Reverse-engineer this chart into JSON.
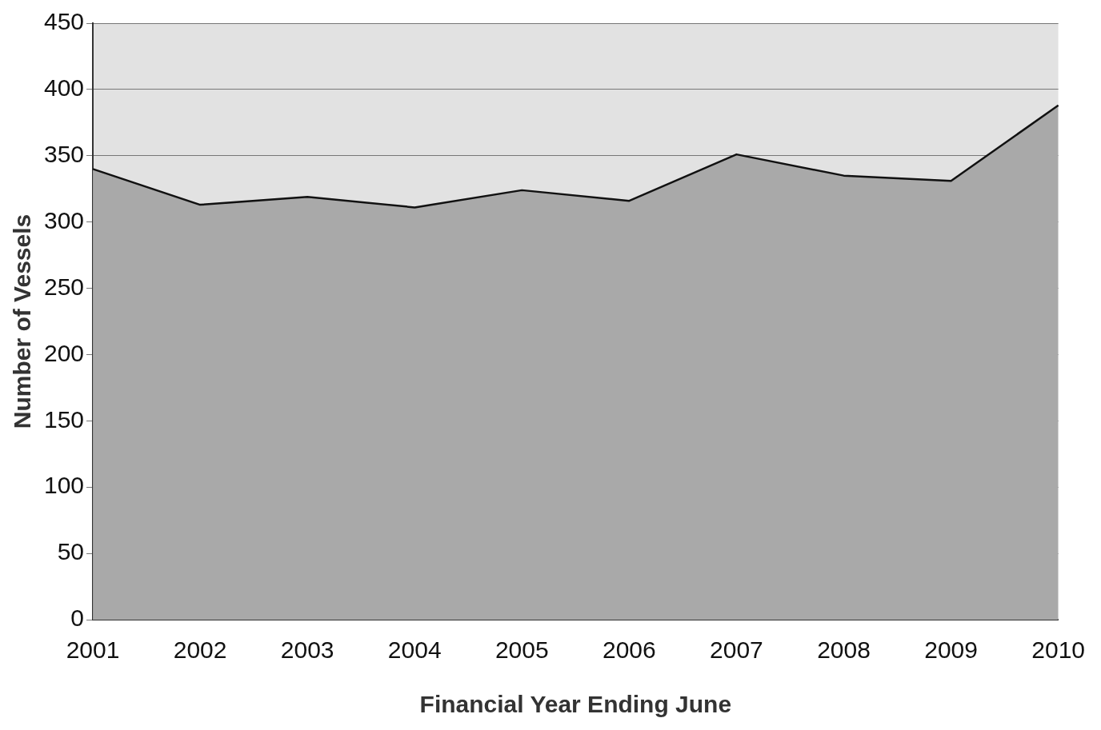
{
  "chart_data": {
    "type": "area",
    "xlabel": "Financial Year Ending June",
    "ylabel": "Number of Vessels",
    "categories": [
      "2001",
      "2002",
      "2003",
      "2004",
      "2005",
      "2006",
      "2007",
      "2008",
      "2009",
      "2010"
    ],
    "series": [
      {
        "color": "#a9a9a9",
        "values": [
          340,
          313,
          319,
          311,
          324,
          316,
          351,
          335,
          331,
          388
        ]
      }
    ],
    "ylim": [
      0,
      450
    ],
    "yticks": [
      0,
      50,
      100,
      150,
      200,
      250,
      300,
      350,
      400,
      450
    ],
    "grid": "y",
    "legend": false
  }
}
